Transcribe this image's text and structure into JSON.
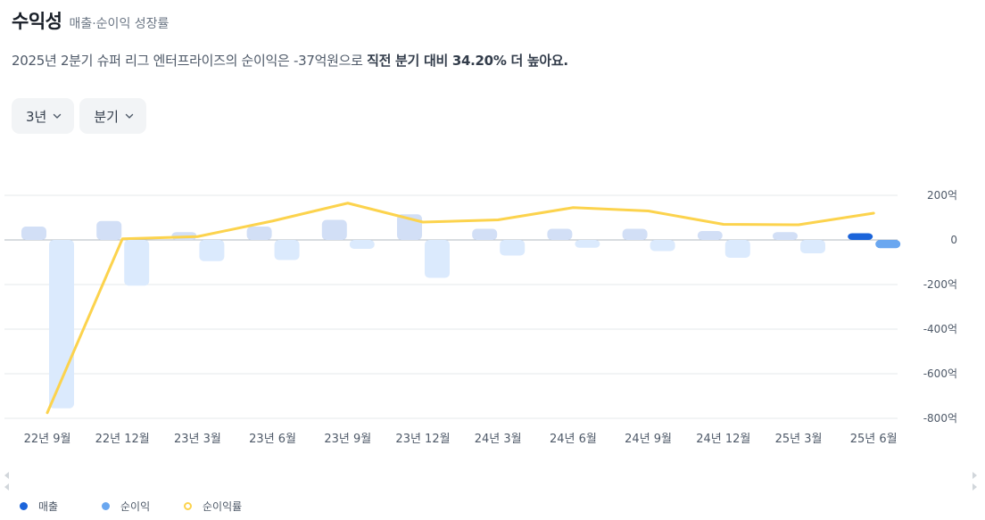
{
  "header": {
    "title": "수익성",
    "subtitle": "매출·순이익 성장률"
  },
  "summary": {
    "prefix": "2025년 2분기 슈퍼 리그 엔터프라이즈의 순이익은 -37억원으로 ",
    "highlight": "직전 분기 대비 34.20% 더 높아요."
  },
  "filters": [
    {
      "label": "3년"
    },
    {
      "label": "분기"
    }
  ],
  "legend": [
    {
      "label": "매출",
      "color": "#1b64da"
    },
    {
      "label": "순이익",
      "color": "#6aa7f0"
    },
    {
      "label": "순이익률",
      "color": "#fcd34d"
    }
  ],
  "chart_data": {
    "type": "bar",
    "categories": [
      "22년 9월",
      "22년 12월",
      "23년 3월",
      "23년 6월",
      "23년 9월",
      "23년 12월",
      "24년 3월",
      "24년 6월",
      "24년 9월",
      "24년 12월",
      "25년 3월",
      "25년 6월"
    ],
    "series": [
      {
        "name": "매출",
        "type": "bar",
        "values": [
          60,
          85,
          35,
          60,
          90,
          115,
          50,
          50,
          50,
          40,
          35,
          30
        ]
      },
      {
        "name": "순이익",
        "type": "bar",
        "values": [
          -755,
          -205,
          -95,
          -90,
          -40,
          -170,
          -70,
          -35,
          -50,
          -80,
          -60,
          -37
        ]
      },
      {
        "name": "순이익률",
        "type": "line",
        "values": [
          -775,
          5,
          15,
          85,
          165,
          80,
          90,
          145,
          130,
          70,
          68,
          120
        ]
      }
    ],
    "y_ticks": [
      {
        "value": 200,
        "label": "200억"
      },
      {
        "value": 0,
        "label": "0"
      },
      {
        "value": -200,
        "label": "-200억"
      },
      {
        "value": -400,
        "label": "-400억"
      },
      {
        "value": -600,
        "label": "-600억"
      },
      {
        "value": -800,
        "label": "-800억"
      }
    ],
    "ylim": [
      -800,
      200
    ],
    "colors": {
      "revenue_past": "#d2dff6",
      "revenue_latest": "#1b64da",
      "net_past": "#dbeafd",
      "net_latest": "#6aa7f0",
      "line": "#fcd34d",
      "grid": "#e5e8eb",
      "zero": "#b0b8c1"
    },
    "grid": true,
    "legend_position": "bottom-left"
  }
}
